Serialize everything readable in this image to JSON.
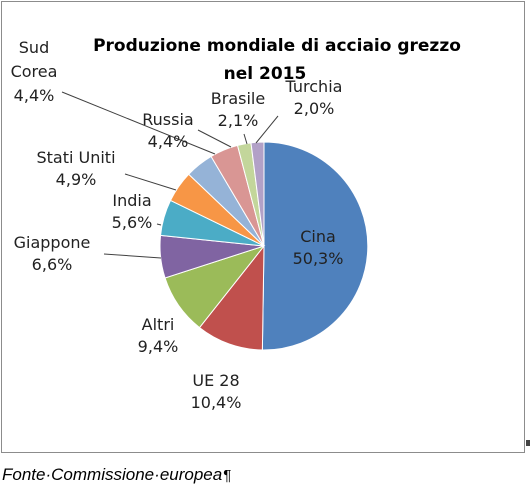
{
  "chart_data": {
    "type": "pie",
    "title_lines": [
      "Produzione mondiale di acciaio grezzo",
      "nel 2015"
    ],
    "slices": [
      {
        "label_lines": [
          "Cina"
        ],
        "value": 50.3,
        "value_text": "50,3%",
        "color": "#4f81bd"
      },
      {
        "label_lines": [
          "UE 28"
        ],
        "value": 10.4,
        "value_text": "10,4%",
        "color": "#c0504d"
      },
      {
        "label_lines": [
          "Altri"
        ],
        "value": 9.4,
        "value_text": "9,4%",
        "color": "#9bbb59"
      },
      {
        "label_lines": [
          "Giappone"
        ],
        "value": 6.6,
        "value_text": "6,6%",
        "color": "#8064a2"
      },
      {
        "label_lines": [
          "India"
        ],
        "value": 5.6,
        "value_text": "5,6%",
        "color": "#4bacc6"
      },
      {
        "label_lines": [
          "Stati Uniti"
        ],
        "value": 4.9,
        "value_text": "4,9%",
        "color": "#f79646"
      },
      {
        "label_lines": [
          "Sud",
          "Corea"
        ],
        "value": 4.4,
        "value_text": "4,4%",
        "color": "#95b3d7"
      },
      {
        "label_lines": [
          "Russia"
        ],
        "value": 4.4,
        "value_text": "4,4%",
        "color": "#d99694"
      },
      {
        "label_lines": [
          "Brasile"
        ],
        "value": 2.1,
        "value_text": "2,1%",
        "color": "#c3d69b"
      },
      {
        "label_lines": [
          "Turchia"
        ],
        "value": 2.0,
        "value_text": "2,0%",
        "color": "#b2a1c7"
      }
    ],
    "legend": "none",
    "labels": "outside with leader lines"
  },
  "caption": {
    "words": [
      "Fonte",
      "Commissione",
      "europea"
    ],
    "separator": "·",
    "end_mark": "¶"
  }
}
